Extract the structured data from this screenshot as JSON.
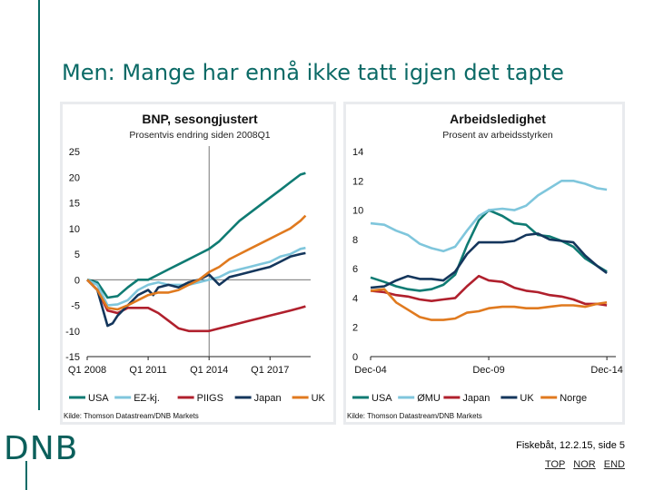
{
  "slide": {
    "title": "Men: Mange har ennå ikke tatt igjen det tapte",
    "logo": "DNB",
    "footer": "Fiskebåt, 12.2.15, side 5",
    "nav": [
      "TOP",
      "NOR",
      "END"
    ]
  },
  "chart_data": [
    {
      "type": "line",
      "title": "BNP, sesongjustert",
      "subtitle": "Prosentvis endring siden 2008Q1",
      "x_ticks": [
        "Q1 2008",
        "Q1 2011",
        "Q1 2014",
        "Q1 2017"
      ],
      "x_tick_positions": [
        2008.0,
        2011.0,
        2014.0,
        2017.0
      ],
      "xlim": [
        2008.0,
        2019.0
      ],
      "y_ticks": [
        "25",
        "20",
        "15",
        "10",
        "5",
        "0",
        "-5",
        "-10",
        "-15"
      ],
      "ylim": [
        -15,
        25
      ],
      "vertical_marker_x": 2014.0,
      "source": "Kilde: Thomson Datastream/DNB Markets",
      "series": [
        {
          "name": "USA",
          "color": "#0f7b73",
          "x": [
            2008.0,
            2008.5,
            2009.0,
            2009.5,
            2010.0,
            2010.5,
            2011.0,
            2011.5,
            2012.0,
            2012.5,
            2013.0,
            2013.5,
            2014.0,
            2014.5,
            2015.0,
            2015.5,
            2016.0,
            2016.5,
            2017.0,
            2017.5,
            2018.0,
            2018.5,
            2018.75
          ],
          "y": [
            0,
            -0.5,
            -3.5,
            -3.2,
            -1.5,
            0,
            0,
            1,
            2,
            3,
            4,
            5,
            6,
            7.5,
            9.5,
            11.5,
            13,
            14.5,
            16,
            17.5,
            19,
            20.5,
            20.8
          ]
        },
        {
          "name": "EZ-kj.",
          "color": "#7fc6dc",
          "x": [
            2008.0,
            2008.5,
            2009.0,
            2009.5,
            2010.0,
            2010.5,
            2011.0,
            2011.5,
            2012.0,
            2012.5,
            2013.0,
            2013.5,
            2014.0,
            2014.5,
            2015.0,
            2015.5,
            2016.0,
            2016.5,
            2017.0,
            2017.5,
            2018.0,
            2018.5,
            2018.75
          ],
          "y": [
            0,
            -1,
            -5,
            -4.8,
            -4,
            -2,
            -1,
            -0.5,
            -1,
            -1,
            -1,
            -0.5,
            0,
            0.5,
            1.5,
            2,
            2.5,
            3,
            3.5,
            4.5,
            5,
            6,
            6.2
          ]
        },
        {
          "name": "PIIGS",
          "color": "#b0202d",
          "x": [
            2008.0,
            2008.5,
            2009.0,
            2009.5,
            2010.0,
            2010.5,
            2011.0,
            2011.5,
            2012.0,
            2012.5,
            2013.0,
            2013.5,
            2014.0,
            2014.5,
            2015.0,
            2015.5,
            2016.0,
            2016.5,
            2017.0,
            2017.5,
            2018.0,
            2018.5,
            2018.75
          ],
          "y": [
            0,
            -2,
            -6,
            -6.5,
            -5.5,
            -5.5,
            -5.5,
            -6.5,
            -8,
            -9.5,
            -10,
            -10,
            -10,
            -9.5,
            -9,
            -8.5,
            -8,
            -7.5,
            -7,
            -6.5,
            -6,
            -5.5,
            -5.2
          ]
        },
        {
          "name": "Japan",
          "color": "#14365c",
          "x": [
            2008.0,
            2008.5,
            2009.0,
            2009.25,
            2009.5,
            2010.0,
            2010.5,
            2011.0,
            2011.25,
            2011.5,
            2012.0,
            2012.5,
            2013.0,
            2013.5,
            2014.0,
            2014.5,
            2015.0,
            2015.5,
            2016.0,
            2016.5,
            2017.0,
            2017.5,
            2018.0,
            2018.5,
            2018.75
          ],
          "y": [
            0,
            -2,
            -9,
            -8.5,
            -7,
            -5,
            -3,
            -2,
            -3,
            -1.5,
            -1,
            -1.5,
            -0.5,
            0,
            1,
            -1,
            0.5,
            1,
            1.5,
            2,
            2.5,
            3.5,
            4.5,
            5,
            5.2
          ]
        },
        {
          "name": "UK",
          "color": "#e07a1f",
          "x": [
            2008.0,
            2008.5,
            2009.0,
            2009.5,
            2010.0,
            2010.5,
            2011.0,
            2011.5,
            2012.0,
            2012.5,
            2013.0,
            2013.5,
            2014.0,
            2014.5,
            2015.0,
            2015.5,
            2016.0,
            2016.5,
            2017.0,
            2017.5,
            2018.0,
            2018.5,
            2018.75
          ],
          "y": [
            0,
            -2,
            -5.5,
            -5.8,
            -5,
            -4,
            -3,
            -2.5,
            -2.5,
            -2,
            -1,
            0,
            1.5,
            2.5,
            4,
            5,
            6,
            7,
            8,
            9,
            10,
            11.5,
            12.5
          ]
        }
      ]
    },
    {
      "type": "line",
      "title": "Arbeidsledighet",
      "subtitle": "Prosent av arbeidsstyrken",
      "x_ticks": [
        "Dec-04",
        "Dec-09",
        "Dec-14"
      ],
      "x_tick_positions": [
        2004.92,
        2009.92,
        2014.92
      ],
      "xlim": [
        2004.92,
        2015.3
      ],
      "y_ticks": [
        "14",
        "12",
        "10",
        "8",
        "6",
        "4",
        "2",
        "0"
      ],
      "ylim": [
        0,
        14
      ],
      "source": "Kilde: Thomson Datastream/DNB Markets",
      "series": [
        {
          "name": "USA",
          "color": "#0f7b73",
          "x": [
            2004.92,
            2005.5,
            2006.0,
            2006.5,
            2007.0,
            2007.5,
            2008.0,
            2008.5,
            2009.0,
            2009.5,
            2009.92,
            2010.5,
            2011.0,
            2011.5,
            2012.0,
            2012.5,
            2013.0,
            2013.5,
            2014.0,
            2014.5,
            2014.92
          ],
          "y": [
            5.4,
            5.1,
            4.8,
            4.6,
            4.5,
            4.6,
            4.9,
            5.6,
            7.6,
            9.3,
            10.0,
            9.6,
            9.1,
            9.0,
            8.3,
            8.2,
            7.9,
            7.5,
            6.7,
            6.2,
            5.8
          ]
        },
        {
          "name": "ØMU",
          "color": "#7fc6dc",
          "x": [
            2004.92,
            2005.5,
            2006.0,
            2006.5,
            2007.0,
            2007.5,
            2008.0,
            2008.5,
            2009.0,
            2009.5,
            2009.92,
            2010.5,
            2011.0,
            2011.5,
            2012.0,
            2012.5,
            2013.0,
            2013.5,
            2014.0,
            2014.5,
            2014.92
          ],
          "y": [
            9.1,
            9.0,
            8.6,
            8.3,
            7.7,
            7.4,
            7.2,
            7.5,
            8.6,
            9.6,
            10.0,
            10.1,
            10.0,
            10.3,
            11.0,
            11.5,
            12.0,
            12.0,
            11.8,
            11.5,
            11.4
          ]
        },
        {
          "name": "Japan",
          "color": "#b0202d",
          "x": [
            2004.92,
            2005.5,
            2006.0,
            2006.5,
            2007.0,
            2007.5,
            2008.0,
            2008.5,
            2009.0,
            2009.5,
            2009.92,
            2010.5,
            2011.0,
            2011.5,
            2012.0,
            2012.5,
            2013.0,
            2013.5,
            2014.0,
            2014.5,
            2014.92
          ],
          "y": [
            4.5,
            4.4,
            4.2,
            4.1,
            3.9,
            3.8,
            3.9,
            4.0,
            4.8,
            5.5,
            5.2,
            5.1,
            4.7,
            4.5,
            4.4,
            4.2,
            4.1,
            3.9,
            3.6,
            3.6,
            3.5
          ]
        },
        {
          "name": "UK",
          "color": "#14365c",
          "x": [
            2004.92,
            2005.5,
            2006.0,
            2006.5,
            2007.0,
            2007.5,
            2008.0,
            2008.5,
            2009.0,
            2009.5,
            2009.92,
            2010.5,
            2011.0,
            2011.5,
            2012.0,
            2012.5,
            2013.0,
            2013.5,
            2014.0,
            2014.5,
            2014.92
          ],
          "y": [
            4.7,
            4.8,
            5.2,
            5.5,
            5.3,
            5.3,
            5.2,
            5.8,
            7.0,
            7.8,
            7.8,
            7.8,
            7.9,
            8.3,
            8.4,
            8.0,
            7.9,
            7.8,
            6.9,
            6.2,
            5.7
          ]
        },
        {
          "name": "Norge",
          "color": "#e07a1f",
          "x": [
            2004.92,
            2005.5,
            2006.0,
            2006.5,
            2007.0,
            2007.5,
            2008.0,
            2008.5,
            2009.0,
            2009.5,
            2009.92,
            2010.5,
            2011.0,
            2011.5,
            2012.0,
            2012.5,
            2013.0,
            2013.5,
            2014.0,
            2014.5,
            2014.92
          ],
          "y": [
            4.5,
            4.6,
            3.7,
            3.2,
            2.7,
            2.5,
            2.5,
            2.6,
            3.0,
            3.1,
            3.3,
            3.4,
            3.4,
            3.3,
            3.3,
            3.4,
            3.5,
            3.5,
            3.4,
            3.6,
            3.7
          ]
        }
      ]
    }
  ]
}
